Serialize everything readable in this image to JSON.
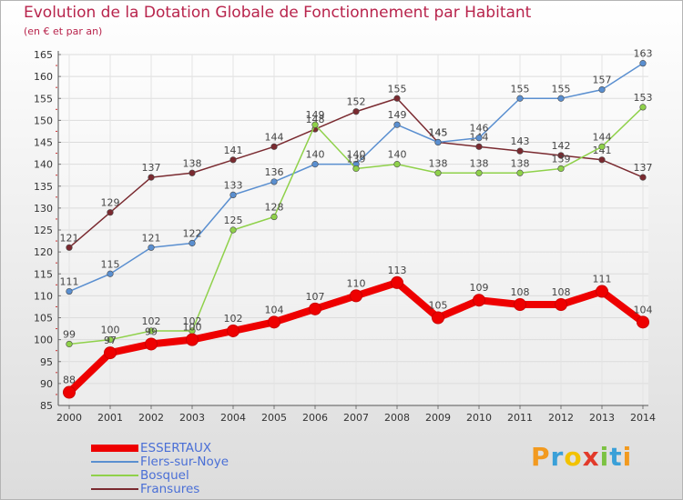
{
  "title": "Evolution de la Dotation Globale de Fonctionnement par Habitant",
  "subtitle": "(en € et par an)",
  "logo": "Proxiti",
  "chart_data": {
    "type": "line",
    "title": "Evolution de la Dotation Globale de Fonctionnement par Habitant",
    "subtitle": "(en € et par an)",
    "xlabel": "",
    "ylabel": "",
    "x": [
      2000,
      2001,
      2002,
      2003,
      2004,
      2005,
      2006,
      2007,
      2008,
      2009,
      2010,
      2011,
      2012,
      2013,
      2014
    ],
    "ylim": [
      85,
      165
    ],
    "yticks": [
      85,
      90,
      95,
      100,
      105,
      110,
      115,
      120,
      125,
      130,
      135,
      140,
      145,
      150,
      155,
      160,
      165
    ],
    "grid": true,
    "legend_position": "bottom-left",
    "series": [
      {
        "name": "Fransures",
        "color": "#7a2a30",
        "values": [
          121,
          129,
          137,
          138,
          141,
          144,
          148,
          152,
          155,
          145,
          144,
          143,
          142,
          141,
          137
        ]
      },
      {
        "name": "Flers-sur-Noye",
        "color": "#5a8fd0",
        "values": [
          111,
          115,
          121,
          122,
          133,
          136,
          140,
          140,
          149,
          145,
          146,
          155,
          155,
          157,
          163
        ]
      },
      {
        "name": "Bosquel",
        "color": "#8fd14a",
        "values": [
          99,
          100,
          102,
          102,
          125,
          128,
          149,
          139,
          140,
          138,
          138,
          138,
          139,
          144,
          153
        ]
      },
      {
        "name": "ESSERTAUX",
        "color": "#ee0000",
        "values": [
          88,
          97,
          99,
          100,
          102,
          104,
          107,
          110,
          113,
          105,
          109,
          108,
          108,
          111,
          104
        ]
      }
    ],
    "legend_order": [
      "ESSERTAUX",
      "Flers-sur-Noye",
      "Bosquel",
      "Fransures"
    ]
  }
}
